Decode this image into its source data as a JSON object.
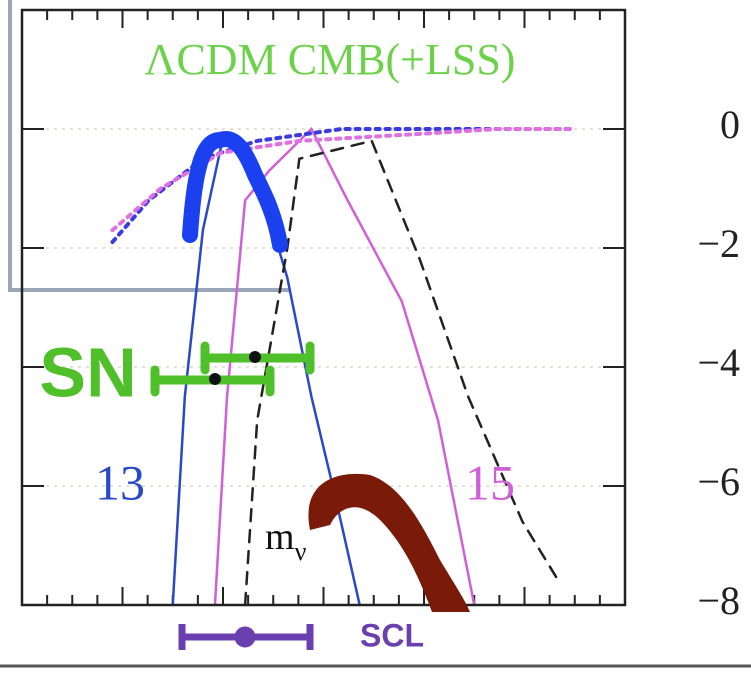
{
  "chart_data": {
    "type": "line",
    "title": "ΛCDM CMB(+LSS)",
    "annotations": [
      "13",
      "15",
      "m",
      "ν",
      "SN",
      "SCL"
    ],
    "xlim": [
      0,
      1
    ],
    "ylim": [
      -8,
      2
    ],
    "yticks": [
      0,
      {
        "value": -2,
        "label": "−2"
      },
      {
        "value": -4,
        "label": "−4"
      },
      {
        "value": -6,
        "label": "−6"
      },
      {
        "value": -8,
        "label": "−8"
      }
    ],
    "grid": true,
    "series": [
      {
        "color": "#2a48c8",
        "style": "solid",
        "x": [
          0.25,
          0.27,
          0.3,
          0.33,
          0.35,
          0.39,
          0.44,
          0.48,
          0.52,
          0.56
        ],
        "values": [
          -8,
          -4.5,
          -1.7,
          -0.3,
          -0.1,
          -0.8,
          -2.5,
          -4.5,
          -6.2,
          -8
        ]
      },
      {
        "color": "#d060d8",
        "style": "solid",
        "x": [
          0.32,
          0.34,
          0.37,
          0.41,
          0.48,
          0.54,
          0.63,
          0.69,
          0.75
        ],
        "values": [
          -8,
          -4.5,
          -1.2,
          -0.7,
          0,
          -1.2,
          -2.9,
          -4.9,
          -8
        ]
      },
      {
        "color": "#222222",
        "style": "dashed",
        "x": [
          0.37,
          0.39,
          0.44,
          0.46,
          0.58,
          0.66,
          0.74,
          0.83,
          0.89
        ],
        "values": [
          -8,
          -4.9,
          -2.0,
          -0.5,
          -0.2,
          -2.2,
          -4.5,
          -6.6,
          -7.6
        ]
      },
      {
        "color": "#3a3ae0",
        "style": "dotted",
        "x": [
          0.15,
          0.21,
          0.3,
          0.39,
          0.53,
          0.71,
          0.91
        ],
        "values": [
          -1.9,
          -1.2,
          -0.5,
          -0.2,
          0,
          0,
          0
        ]
      },
      {
        "color": "#e070e0",
        "style": "dotted",
        "x": [
          0.15,
          0.23,
          0.33,
          0.46,
          0.63,
          0.79,
          0.91
        ],
        "values": [
          -1.7,
          -1.0,
          -0.4,
          -0.2,
          -0.1,
          0,
          0
        ]
      }
    ]
  }
}
